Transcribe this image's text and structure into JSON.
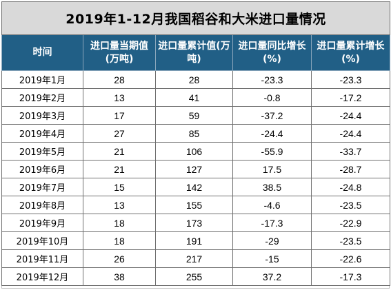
{
  "chart_data": {
    "type": "table",
    "title": "2019年1-12月我国稻谷和大米进口量情况",
    "columns": [
      "时间",
      "进口量当期值(万吨)",
      "进口量累计值(万吨)",
      "进口量同比增长(%)",
      "进口量累计增长(%)"
    ],
    "rows": [
      [
        "2019年1月",
        "28",
        "28",
        "-23.3",
        "-23.3"
      ],
      [
        "2019年2月",
        "13",
        "41",
        "-0.8",
        "-17.2"
      ],
      [
        "2019年3月",
        "17",
        "59",
        "-37.2",
        "-24.4"
      ],
      [
        "2019年4月",
        "27",
        "85",
        "-24.4",
        "-24.4"
      ],
      [
        "2019年5月",
        "21",
        "106",
        "-55.9",
        "-33.7"
      ],
      [
        "2019年6月",
        "21",
        "127",
        "17.5",
        "-28.7"
      ],
      [
        "2019年7月",
        "15",
        "142",
        "38.5",
        "-24.8"
      ],
      [
        "2019年8月",
        "13",
        "155",
        "-4.6",
        "-23.5"
      ],
      [
        "2019年9月",
        "18",
        "173",
        "-17.3",
        "-22.9"
      ],
      [
        "2019年10月",
        "18",
        "191",
        "-29",
        "-23.5"
      ],
      [
        "2019年11月",
        "26",
        "217",
        "-15",
        "-22.6"
      ],
      [
        "2019年12月",
        "38",
        "255",
        "37.2",
        "-17.3"
      ]
    ]
  },
  "colors": {
    "title_background": "#d9d9d9",
    "header_background": "#215f86",
    "header_text": "#ffffff",
    "grid_line": "#6f6f6f"
  }
}
